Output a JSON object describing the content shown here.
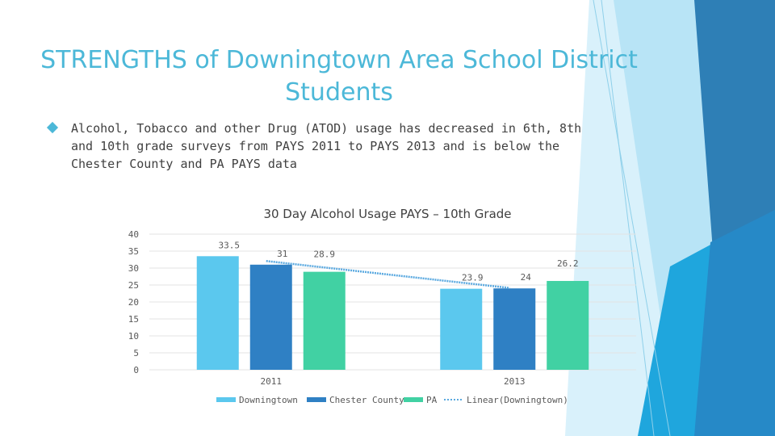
{
  "slide": {
    "title_line1": "STRENGTHS of Downingtown Area School District",
    "title_line2": "Students",
    "bullet": "Alcohol, Tobacco and other Drug (ATOD) usage has decreased in 6th, 8th and 10th grade surveys from PAYS 2011 to PAYS 2013 and is below the Chester County and PA PAYS data"
  },
  "colors": {
    "title": "#4cb8d8",
    "downingtown": "#5bc8ee",
    "chester": "#2f80c4",
    "pa": "#41d1a3",
    "trend": "#5aa9e0"
  },
  "chart_data": {
    "type": "bar",
    "title": "30 Day Alcohol Usage PAYS – 10th Grade",
    "categories": [
      "2011",
      "2013"
    ],
    "series": [
      {
        "name": "Downingtown",
        "values": [
          33.5,
          23.9
        ],
        "color": "#5bc8ee"
      },
      {
        "name": "Chester County",
        "values": [
          31,
          24
        ],
        "color": "#2f80c4"
      },
      {
        "name": "PA",
        "values": [
          28.9,
          26.2
        ],
        "color": "#41d1a3"
      }
    ],
    "trendline": {
      "name": "Linear(Downingtown)",
      "values": [
        33.5,
        23.9
      ]
    },
    "yticks": [
      0,
      5,
      10,
      15,
      20,
      25,
      30,
      35,
      40
    ],
    "ylim": [
      0,
      40
    ],
    "grid": true,
    "legend": "bottom"
  }
}
